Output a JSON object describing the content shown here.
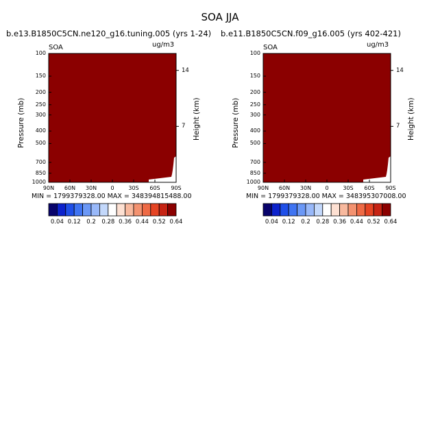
{
  "figure": {
    "title": "SOA JJA"
  },
  "colorbar": {
    "colors": [
      "#08036b",
      "#0c22cc",
      "#1f4fe8",
      "#3f74f2",
      "#6b98f6",
      "#98b8f9",
      "#c3d8fb",
      "#ffffff",
      "#fde0d2",
      "#f8b99e",
      "#f39270",
      "#ee6a45",
      "#e54423",
      "#c62313",
      "#8b0000"
    ],
    "labels": [
      "0.04",
      "0.12",
      "0.2",
      "0.28",
      "0.36",
      "0.44",
      "0.52",
      "0.64"
    ]
  },
  "panels": [
    {
      "run_title": "b.e13.B1850C5CN.ne120_g16.tuning.005 (yrs 1-24)",
      "var_label": "SOA",
      "unit_label": "ug/m3",
      "min_max": "MIN = 1799379328.00   MAX = 348394815488.00"
    },
    {
      "run_title": "b.e11.B1850C5CN.f09_g16.005 (yrs 402-421)",
      "var_label": "SOA",
      "unit_label": "ug/m3",
      "min_max": "MIN = 1799379328.00   MAX = 348395307008.00"
    }
  ],
  "chart_data": [
    {
      "type": "heatmap",
      "title": "b.e13.B1850C5CN.ne120_g16.tuning.005 (yrs 1-24)",
      "xlabel": "",
      "ylabel": "Pressure (mb)",
      "y2label": "Height (km)",
      "x_ticks": [
        "90N",
        "60N",
        "30N",
        "0",
        "30S",
        "60S",
        "90S"
      ],
      "y_ticks": [
        100,
        150,
        200,
        250,
        300,
        400,
        500,
        700,
        850,
        1000
      ],
      "y2_ticks": [
        14,
        7
      ],
      "y_scale": "log",
      "ylim": [
        1000,
        100
      ],
      "fill_color": "#8b0000",
      "min": 1799379328.0,
      "max": 348394815488.0
    },
    {
      "type": "heatmap",
      "title": "b.e11.B1850C5CN.f09_g16.005 (yrs 402-421)",
      "xlabel": "",
      "ylabel": "Pressure (mb)",
      "y2label": "Height (km)",
      "x_ticks": [
        "90N",
        "60N",
        "30N",
        "0",
        "30S",
        "60S",
        "90S"
      ],
      "y_ticks": [
        100,
        150,
        200,
        250,
        300,
        400,
        500,
        700,
        850,
        1000
      ],
      "y2_ticks": [
        14,
        7
      ],
      "y_scale": "log",
      "ylim": [
        1000,
        100
      ],
      "fill_color": "#8b0000",
      "min": 1799379328.0,
      "max": 348395307008.0
    }
  ]
}
